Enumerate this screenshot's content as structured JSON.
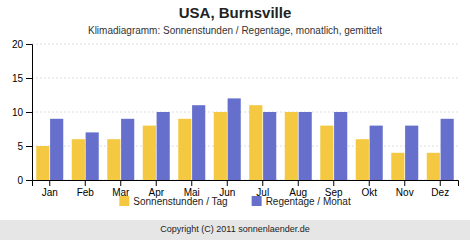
{
  "chart_data": {
    "type": "bar",
    "title": "USA,  Burnsville",
    "subtitle": "Klimadiagramm: Sonnenstunden / Regentage, monatlich, gemittelt",
    "categories": [
      "Jan",
      "Feb",
      "Mar",
      "Apr",
      "Mai",
      "Jun",
      "Jul",
      "Aug",
      "Sep",
      "Okt",
      "Nov",
      "Dez"
    ],
    "series": [
      {
        "name": "Sonnenstunden / Tag",
        "color": "#F5C842",
        "values": [
          5,
          6,
          6,
          8,
          9,
          10,
          11,
          10,
          8,
          6,
          4,
          4
        ]
      },
      {
        "name": "Regentage / Monat",
        "color": "#6670CC",
        "values": [
          9,
          7,
          9,
          10,
          11,
          12,
          10,
          10,
          10,
          8,
          8,
          9
        ]
      }
    ],
    "ylim": [
      0,
      20
    ],
    "yticks": [
      0,
      5,
      10,
      15,
      20
    ],
    "grid": true,
    "legend": "bottom",
    "annotations": [
      "Copyright (C) 2011 sonnenlaender.de"
    ]
  }
}
